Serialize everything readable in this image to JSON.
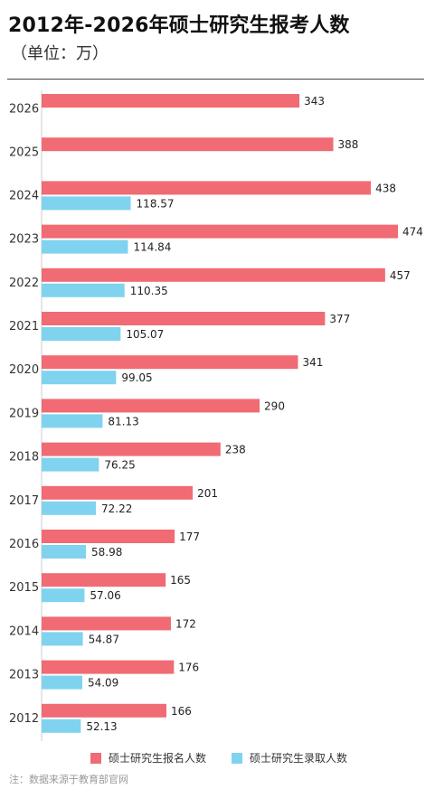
{
  "chart_data": {
    "type": "bar",
    "orientation": "horizontal",
    "title": "2012年-2026年硕士研究生报考人数",
    "subtitle": "（单位：万）",
    "categories": [
      "2026",
      "2025",
      "2024",
      "2023",
      "2022",
      "2021",
      "2020",
      "2019",
      "2018",
      "2017",
      "2016",
      "2015",
      "2014",
      "2013",
      "2012"
    ],
    "series": [
      {
        "name": "硕士研究生报名人数",
        "color": "#f06b73",
        "values": [
          343,
          388,
          438,
          474,
          457,
          377,
          341,
          290,
          238,
          201,
          177,
          165,
          172,
          176,
          166
        ],
        "labels": [
          "343",
          "388",
          "438",
          "474",
          "457",
          "377",
          "341",
          "290",
          "238",
          "201",
          "177",
          "165",
          "172",
          "176",
          "166"
        ]
      },
      {
        "name": "硕士研究生录取人数",
        "color": "#7fd3ef",
        "values": [
          null,
          null,
          118.57,
          114.84,
          110.35,
          105.07,
          99.05,
          81.13,
          76.25,
          72.22,
          58.98,
          57.06,
          54.87,
          54.09,
          52.13
        ],
        "labels": [
          "",
          "",
          "118.57",
          "114.84",
          "110.35",
          "105.07",
          "99.05",
          "81.13",
          "76.25",
          "72.22",
          "58.98",
          "57.06",
          "54.87",
          "54.09",
          "52.13"
        ]
      }
    ],
    "xlim": [
      0,
      474
    ],
    "grid": false,
    "legend_position": "bottom"
  },
  "note": "注：数据来源于教育部官网"
}
